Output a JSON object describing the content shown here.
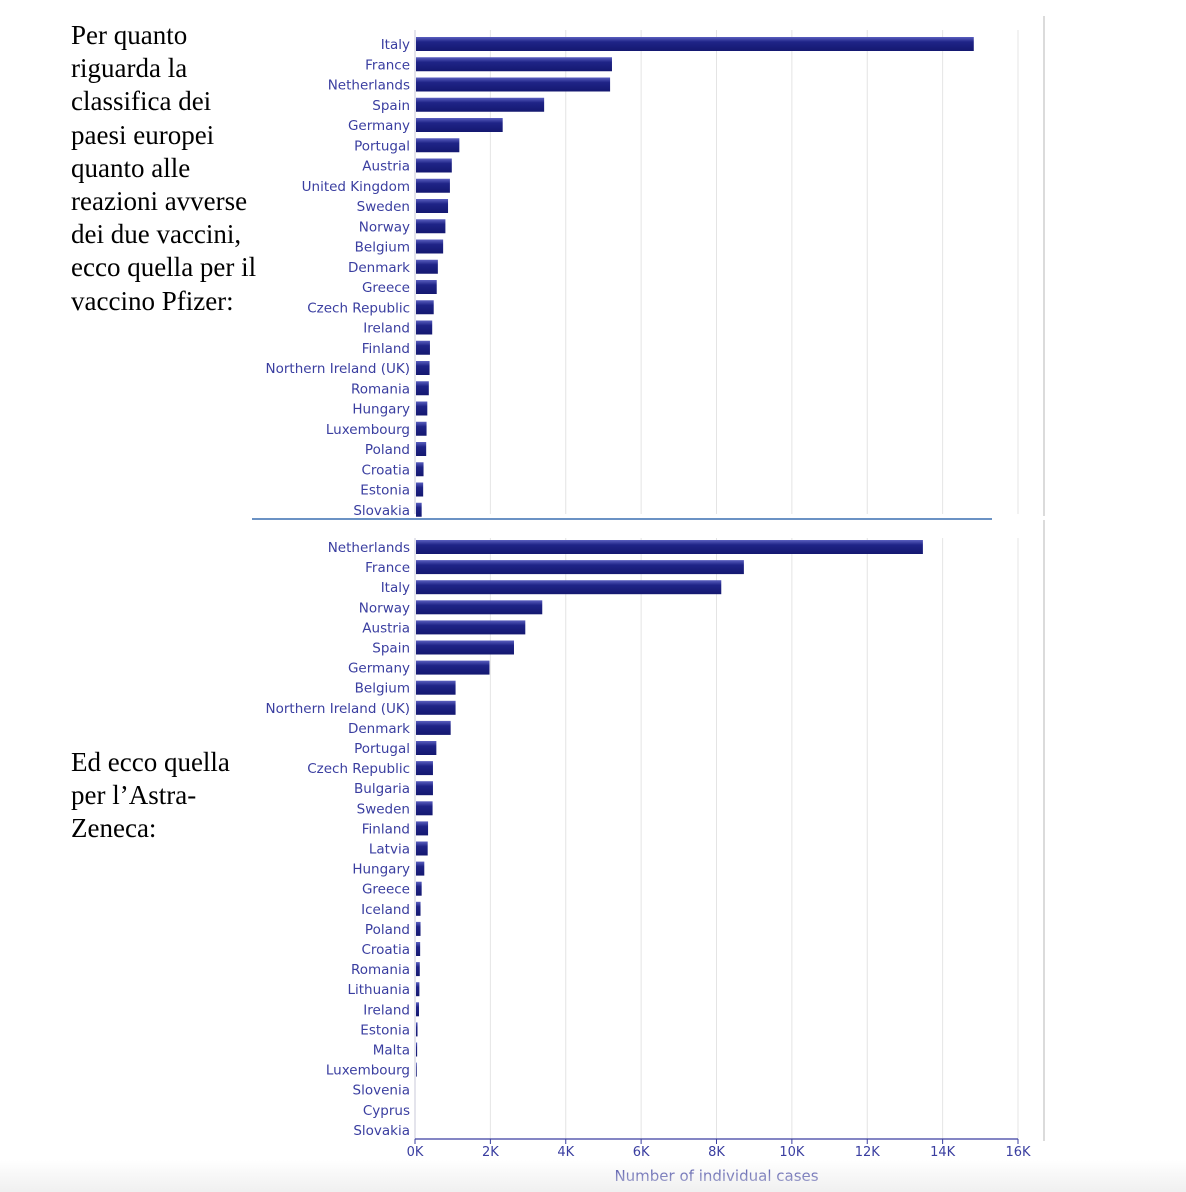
{
  "captions": {
    "pfizer": "Per quanto riguarda la classifica dei paesi europei quanto alle reazioni avverse dei due vaccini, ecco quella per il vaccino Pfizer:",
    "astrazeneca": "Ed ecco quella per l’Astra-Zeneca:"
  },
  "colors": {
    "bar": "#1f2487",
    "bar_highlight": "#5a5fbf",
    "label": "#3a3ea0",
    "grid": "#e4e4e4",
    "axis": "#3a3ea0"
  },
  "chart_data": [
    {
      "type": "bar",
      "orientation": "horizontal",
      "title": "",
      "xlabel": "",
      "ylabel": "",
      "xlim": [
        0,
        16000
      ],
      "grid": true,
      "categories": [
        "Italy",
        "France",
        "Netherlands",
        "Spain",
        "Germany",
        "Portugal",
        "Austria",
        "United Kingdom",
        "Sweden",
        "Norway",
        "Belgium",
        "Denmark",
        "Greece",
        "Czech Republic",
        "Ireland",
        "Finland",
        "Northern Ireland (UK)",
        "Romania",
        "Hungary",
        "Luxembourg",
        "Poland",
        "Croatia",
        "Estonia",
        "Slovakia"
      ],
      "values": [
        14800,
        5200,
        5150,
        3400,
        2300,
        1150,
        950,
        900,
        850,
        780,
        720,
        580,
        550,
        470,
        430,
        370,
        360,
        340,
        300,
        280,
        270,
        200,
        190,
        150
      ]
    },
    {
      "type": "bar",
      "orientation": "horizontal",
      "title": "",
      "xlabel": "Number of individual cases",
      "ylabel": "",
      "xlim": [
        0,
        16000
      ],
      "xticks": [
        "0K",
        "2K",
        "4K",
        "6K",
        "8K",
        "10K",
        "12K",
        "14K",
        "16K"
      ],
      "grid": true,
      "categories": [
        "Netherlands",
        "France",
        "Italy",
        "Norway",
        "Austria",
        "Spain",
        "Germany",
        "Belgium",
        "Northern Ireland (UK)",
        "Denmark",
        "Portugal",
        "Czech Republic",
        "Bulgaria",
        "Sweden",
        "Finland",
        "Latvia",
        "Hungary",
        "Greece",
        "Iceland",
        "Poland",
        "Croatia",
        "Romania",
        "Lithuania",
        "Ireland",
        "Estonia",
        "Malta",
        "Luxembourg",
        "Slovenia",
        "Cyprus",
        "Slovakia"
      ],
      "values": [
        13450,
        8700,
        8100,
        3350,
        2900,
        2600,
        1950,
        1050,
        1050,
        920,
        540,
        450,
        450,
        440,
        320,
        310,
        220,
        150,
        120,
        120,
        110,
        100,
        90,
        80,
        40,
        30,
        20,
        0,
        0,
        0
      ]
    }
  ]
}
